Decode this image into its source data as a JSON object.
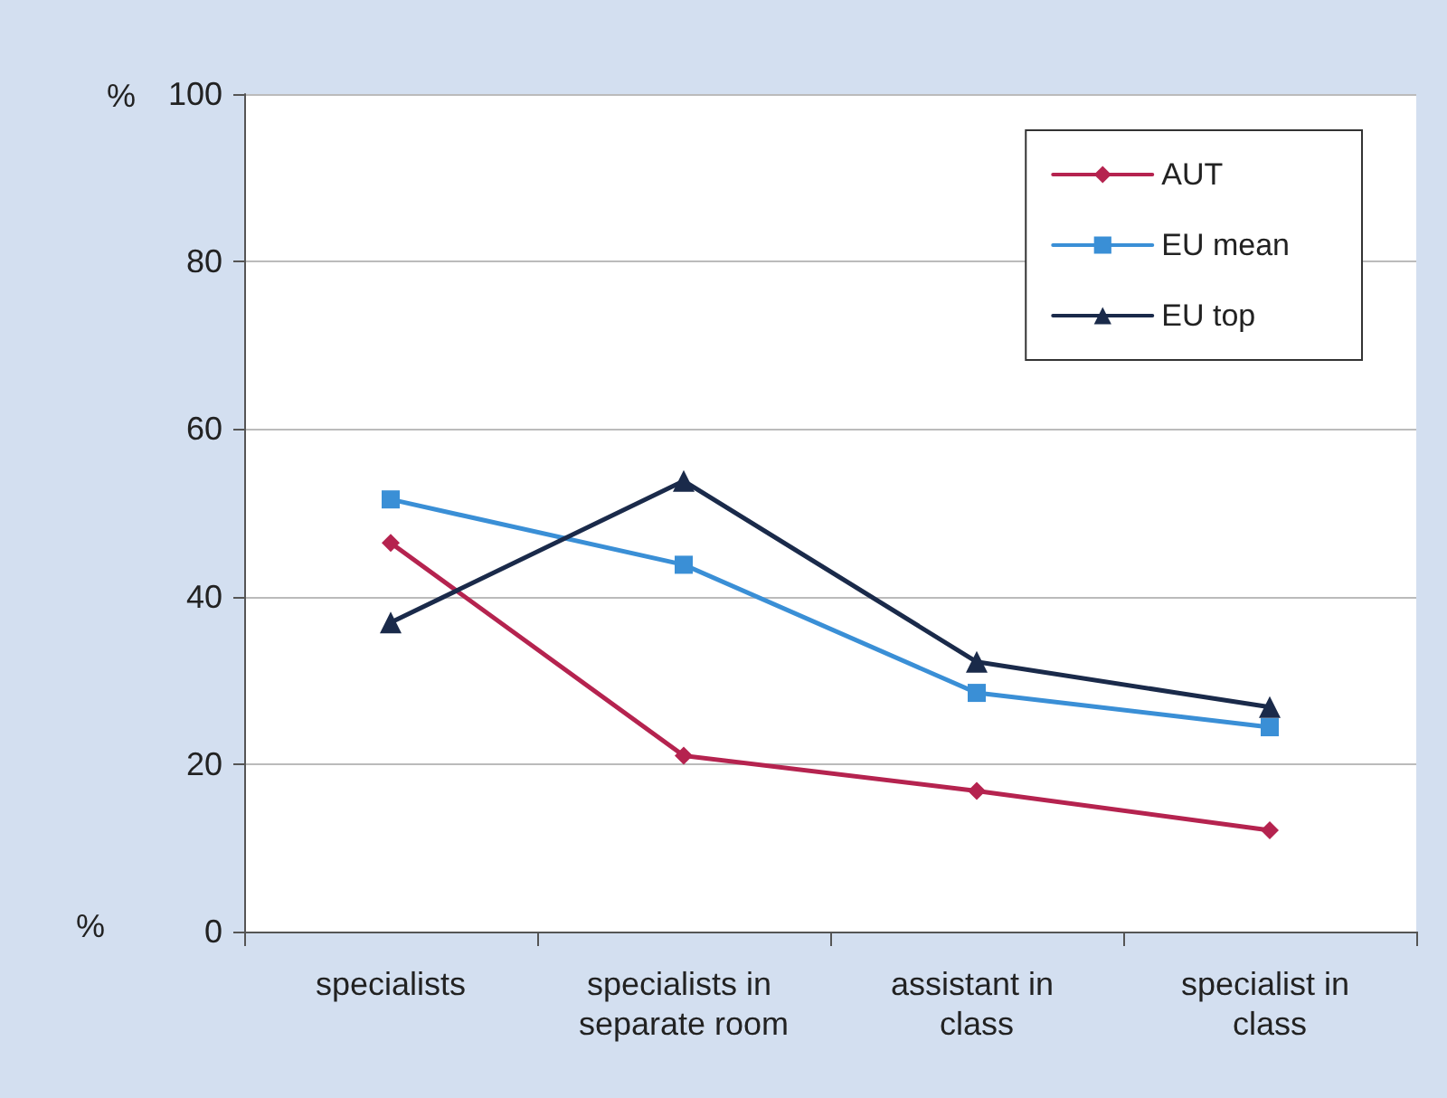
{
  "chart_data": {
    "type": "line",
    "ylabel": "%",
    "annotations": [
      "%"
    ],
    "categories": [
      "specialists",
      "specialists in separate room",
      "assistant in class",
      "specialist in class"
    ],
    "series": [
      {
        "name": "AUT",
        "color": "#b5234f",
        "marker": "diamond",
        "values": [
          46.4,
          21,
          16.8,
          12.1
        ]
      },
      {
        "name": "EU mean",
        "color": "#3a8fd6",
        "marker": "square",
        "values": [
          51.6,
          43.8,
          28.5,
          24.4
        ]
      },
      {
        "name": "EU top",
        "color": "#1a2a4a",
        "marker": "triangle",
        "values": [
          36.9,
          53.8,
          32.2,
          26.8
        ]
      }
    ],
    "ylim": [
      0,
      100
    ],
    "yticks": [
      0,
      20,
      40,
      60,
      80,
      100
    ],
    "grid": "y",
    "legend": "top right",
    "line_style": "solid"
  }
}
